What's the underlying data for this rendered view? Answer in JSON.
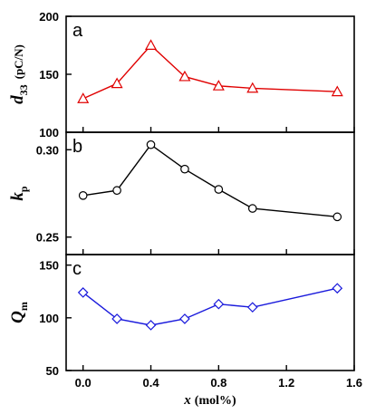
{
  "chart_data": [
    {
      "type": "line",
      "panel_label": "a",
      "ylabel": {
        "main": "d",
        "sub": "33",
        "unit": "(pC/N)"
      },
      "xlabel": "",
      "x": [
        0.0,
        0.2,
        0.4,
        0.6,
        0.8,
        1.0,
        1.5
      ],
      "series": [
        {
          "values": [
            129,
            142,
            175,
            148,
            140,
            138,
            135
          ],
          "color": "#e00000",
          "marker": "triangle"
        }
      ],
      "ylim": [
        100,
        200
      ],
      "yticks": [
        100,
        150,
        200
      ],
      "ytick_labels": [
        "100",
        "150",
        "200"
      ],
      "xlim": [
        -0.1,
        1.6
      ]
    },
    {
      "type": "line",
      "panel_label": "b",
      "ylabel": {
        "main": "k",
        "sub": "p",
        "unit": ""
      },
      "xlabel": "",
      "x": [
        0.0,
        0.2,
        0.4,
        0.6,
        0.8,
        1.0,
        1.5
      ],
      "series": [
        {
          "values": [
            0.2738,
            0.2767,
            0.3029,
            0.2889,
            0.2773,
            0.2664,
            0.2616
          ],
          "color": "#000000",
          "marker": "circle"
        }
      ],
      "ylim": [
        0.24,
        0.31
      ],
      "yticks": [
        0.25,
        0.3
      ],
      "ytick_labels": [
        "0.25",
        "0.30"
      ],
      "xlim": [
        -0.1,
        1.6
      ]
    },
    {
      "type": "line",
      "panel_label": "c",
      "ylabel": {
        "main": "Q",
        "sub": "m",
        "unit": ""
      },
      "xlabel": {
        "main": "x",
        "unit": "(mol%)"
      },
      "x": [
        0.0,
        0.2,
        0.4,
        0.6,
        0.8,
        1.0,
        1.5
      ],
      "series": [
        {
          "values": [
            124,
            99,
            93,
            99,
            113,
            110,
            128
          ],
          "color": "#1a1adc",
          "marker": "diamond"
        }
      ],
      "ylim": [
        50,
        160
      ],
      "yticks": [
        50,
        100,
        150
      ],
      "ytick_labels": [
        "50",
        "100",
        "150"
      ],
      "xlim": [
        -0.1,
        1.6
      ],
      "xticks": [
        0.0,
        0.4,
        0.8,
        1.2,
        1.6
      ],
      "xtick_labels": [
        "0.0",
        "0.4",
        "0.8",
        "1.2",
        "1.6"
      ]
    }
  ]
}
